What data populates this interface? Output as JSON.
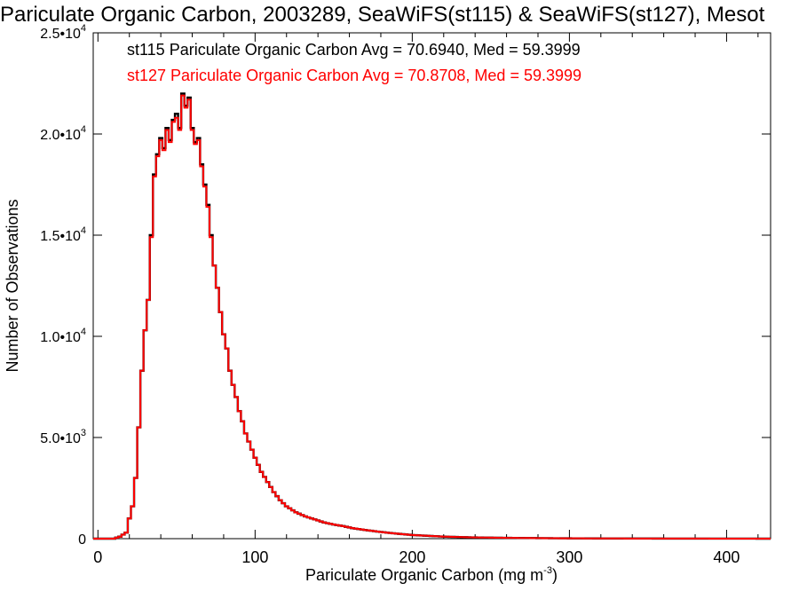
{
  "chart_data": {
    "type": "histogram",
    "title": "Pariculate Organic Carbon, 2003289, SeaWiFS(st115) & SeaWiFS(st127), Mesot",
    "xlabel": {
      "base": "Pariculate Organic Carbon (mg m",
      "sup": "-3",
      "close": ")"
    },
    "ylabel": "Number of Observations",
    "xlim": [
      -3,
      428
    ],
    "ylim": [
      0,
      25000
    ],
    "x_ticks": [
      {
        "value": 0,
        "label": "0"
      },
      {
        "value": 100,
        "label": "100"
      },
      {
        "value": 200,
        "label": "200"
      },
      {
        "value": 300,
        "label": "300"
      },
      {
        "value": 400,
        "label": "400"
      }
    ],
    "y_ticks": [
      {
        "value": 0,
        "mant": "0",
        "exp": ""
      },
      {
        "value": 5000,
        "mant": "5.0•10",
        "exp": "3"
      },
      {
        "value": 10000,
        "mant": "1.0•10",
        "exp": "4"
      },
      {
        "value": 15000,
        "mant": "1.5•10",
        "exp": "4"
      },
      {
        "value": 20000,
        "mant": "2.0•10",
        "exp": "4"
      },
      {
        "value": 25000,
        "mant": "2.5•10",
        "exp": "4"
      }
    ],
    "bin_width": 2,
    "legend": [
      {
        "text": "st115 Pariculate Organic Carbon Avg = 70.6940, Med = 59.3999",
        "color": "#000000"
      },
      {
        "text": "st127 Pariculate Organic Carbon Avg = 70.8708, Med = 59.3999",
        "color": "#ff0000"
      }
    ],
    "series": [
      {
        "name": "st115",
        "color": "#000000",
        "points": [
          [
            -3,
            0
          ],
          [
            10,
            0
          ],
          [
            14,
            100
          ],
          [
            18,
            300
          ],
          [
            20,
            1000
          ],
          [
            22,
            1600
          ],
          [
            24,
            3000
          ],
          [
            26,
            5500
          ],
          [
            28,
            8300
          ],
          [
            30,
            10300
          ],
          [
            32,
            11800
          ],
          [
            34,
            15000
          ],
          [
            36,
            18000
          ],
          [
            38,
            19000
          ],
          [
            40,
            19800
          ],
          [
            42,
            19300
          ],
          [
            44,
            20300
          ],
          [
            46,
            19700
          ],
          [
            48,
            20700
          ],
          [
            50,
            21000
          ],
          [
            52,
            20300
          ],
          [
            54,
            22000
          ],
          [
            56,
            21400
          ],
          [
            58,
            21800
          ],
          [
            60,
            20300
          ],
          [
            62,
            19600
          ],
          [
            64,
            19800
          ],
          [
            66,
            18500
          ],
          [
            68,
            17500
          ],
          [
            70,
            16500
          ],
          [
            72,
            15000
          ],
          [
            74,
            13500
          ],
          [
            76,
            12400
          ],
          [
            78,
            11200
          ],
          [
            80,
            10100
          ],
          [
            82,
            9400
          ],
          [
            84,
            8300
          ],
          [
            86,
            7600
          ],
          [
            88,
            7000
          ],
          [
            90,
            6300
          ],
          [
            92,
            5800
          ],
          [
            94,
            5200
          ],
          [
            96,
            4800
          ],
          [
            98,
            4400
          ],
          [
            100,
            4000
          ],
          [
            104,
            3300
          ],
          [
            108,
            2800
          ],
          [
            112,
            2300
          ],
          [
            116,
            1900
          ],
          [
            120,
            1600
          ],
          [
            126,
            1300
          ],
          [
            132,
            1100
          ],
          [
            138,
            950
          ],
          [
            144,
            800
          ],
          [
            150,
            700
          ],
          [
            156,
            620
          ],
          [
            162,
            520
          ],
          [
            170,
            430
          ],
          [
            180,
            330
          ],
          [
            190,
            250
          ],
          [
            200,
            180
          ],
          [
            210,
            140
          ],
          [
            220,
            100
          ],
          [
            240,
            60
          ],
          [
            260,
            40
          ],
          [
            290,
            20
          ],
          [
            320,
            10
          ],
          [
            360,
            5
          ],
          [
            428,
            0
          ]
        ]
      },
      {
        "name": "st127",
        "color": "#ff0000",
        "points": [
          [
            -3,
            0
          ],
          [
            10,
            0
          ],
          [
            14,
            100
          ],
          [
            18,
            300
          ],
          [
            20,
            1000
          ],
          [
            22,
            1600
          ],
          [
            24,
            3000
          ],
          [
            26,
            5500
          ],
          [
            28,
            8300
          ],
          [
            30,
            10300
          ],
          [
            32,
            11800
          ],
          [
            34,
            14900
          ],
          [
            36,
            17900
          ],
          [
            38,
            18900
          ],
          [
            40,
            19700
          ],
          [
            42,
            19200
          ],
          [
            44,
            20200
          ],
          [
            46,
            19600
          ],
          [
            48,
            20600
          ],
          [
            50,
            20800
          ],
          [
            52,
            20200
          ],
          [
            54,
            21900
          ],
          [
            56,
            21300
          ],
          [
            58,
            21700
          ],
          [
            60,
            20200
          ],
          [
            62,
            19500
          ],
          [
            64,
            19700
          ],
          [
            66,
            18400
          ],
          [
            68,
            17400
          ],
          [
            70,
            16400
          ],
          [
            72,
            14900
          ],
          [
            74,
            13500
          ],
          [
            76,
            12400
          ],
          [
            78,
            11200
          ],
          [
            80,
            10100
          ],
          [
            82,
            9400
          ],
          [
            84,
            8300
          ],
          [
            86,
            7600
          ],
          [
            88,
            7000
          ],
          [
            90,
            6300
          ],
          [
            92,
            5800
          ],
          [
            94,
            5200
          ],
          [
            96,
            4800
          ],
          [
            98,
            4400
          ],
          [
            100,
            4000
          ],
          [
            104,
            3300
          ],
          [
            108,
            2800
          ],
          [
            112,
            2300
          ],
          [
            116,
            1900
          ],
          [
            120,
            1600
          ],
          [
            126,
            1300
          ],
          [
            132,
            1100
          ],
          [
            138,
            950
          ],
          [
            144,
            800
          ],
          [
            150,
            700
          ],
          [
            156,
            620
          ],
          [
            162,
            520
          ],
          [
            170,
            430
          ],
          [
            180,
            330
          ],
          [
            190,
            250
          ],
          [
            200,
            180
          ],
          [
            210,
            140
          ],
          [
            220,
            100
          ],
          [
            240,
            60
          ],
          [
            260,
            40
          ],
          [
            290,
            20
          ],
          [
            320,
            10
          ],
          [
            360,
            5
          ],
          [
            428,
            0
          ]
        ]
      }
    ]
  }
}
